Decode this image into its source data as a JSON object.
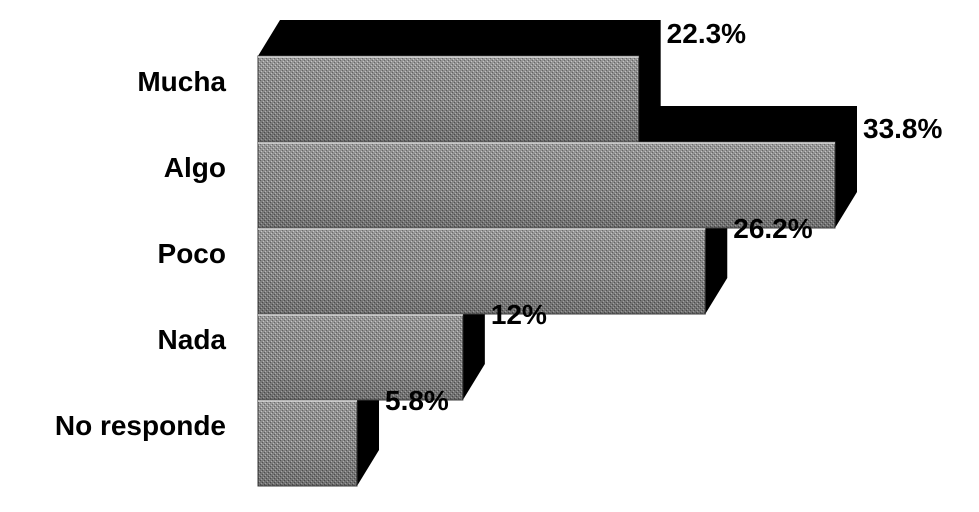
{
  "chart_data": {
    "type": "bar",
    "orientation": "horizontal",
    "style": "3d",
    "categories": [
      "Mucha",
      "Algo",
      "Poco",
      "Nada",
      "No responde"
    ],
    "values": [
      22.3,
      33.8,
      26.2,
      12,
      5.8
    ],
    "value_labels": [
      "22.3%",
      "33.8%",
      "26.2%",
      "12%",
      "5.8%"
    ],
    "unit": "%",
    "title": "",
    "xlabel": "",
    "ylabel": "",
    "xlim": [
      0,
      33.8
    ],
    "grid": false,
    "legend": "none",
    "colors": {
      "face": "#8c8c8c",
      "face_light": "#b2b2b2",
      "face_dark": "#5a5a5a",
      "depth": "#000000",
      "background": "#ffffff"
    }
  }
}
